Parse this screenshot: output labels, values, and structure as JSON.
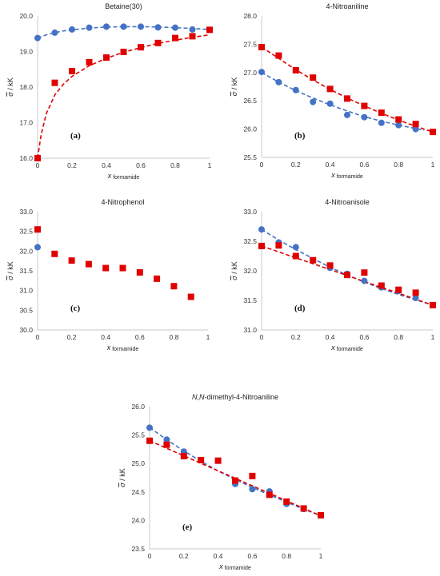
{
  "colors": {
    "blue": "#4472C4",
    "red": "#E00000",
    "axis": "#c8c8c8"
  },
  "chart_data": [
    {
      "type": "scatter",
      "title": "Betaine(30)",
      "panel_label": "(a)",
      "xlabel": "x",
      "xlabel_sub": "formamide",
      "ylabel_sym": "σ",
      "ylabel_unit": " / kK",
      "xlim": [
        0,
        1
      ],
      "ylim": [
        16.0,
        20.0
      ],
      "xticks": [
        "0",
        "0.2",
        "0.4",
        "0.6",
        "0.8",
        "1"
      ],
      "yticks": [
        "16.0",
        "17.0",
        "18.0",
        "19.0",
        "20.0"
      ],
      "series": [
        {
          "color": "blue",
          "marker": "circle",
          "x": [
            0,
            0.1,
            0.2,
            0.3,
            0.4,
            0.5,
            0.6,
            0.7,
            0.8,
            0.9
          ],
          "y": [
            19.38,
            19.53,
            19.62,
            19.67,
            19.7,
            19.7,
            19.7,
            19.68,
            19.67,
            19.62
          ],
          "fit_x": [
            0,
            0.05,
            0.1,
            0.15,
            0.2,
            0.3,
            0.4,
            0.5,
            0.6,
            0.7,
            0.8,
            0.9,
            1.0
          ],
          "fit_y": [
            19.38,
            19.47,
            19.53,
            19.58,
            19.61,
            19.66,
            19.69,
            19.7,
            19.7,
            19.69,
            19.67,
            19.65,
            19.62
          ]
        },
        {
          "color": "red",
          "marker": "square",
          "x": [
            0,
            0.1,
            0.2,
            0.3,
            0.4,
            0.5,
            0.6,
            0.7,
            0.8,
            0.9,
            1.0
          ],
          "y": [
            16.0,
            18.12,
            18.45,
            18.7,
            18.83,
            18.99,
            19.12,
            19.24,
            19.38,
            19.43,
            19.61
          ],
          "fit_x": [
            0,
            0.02,
            0.05,
            0.1,
            0.15,
            0.2,
            0.3,
            0.4,
            0.5,
            0.6,
            0.7,
            0.8,
            0.9,
            1.0
          ],
          "fit_y": [
            16.0,
            16.65,
            17.25,
            17.78,
            18.08,
            18.3,
            18.6,
            18.81,
            18.98,
            19.11,
            19.23,
            19.32,
            19.4,
            19.47
          ]
        }
      ]
    },
    {
      "type": "scatter",
      "title": "4-Nitroaniline",
      "panel_label": "(b)",
      "xlabel": "x",
      "xlabel_sub": "formamide",
      "ylabel_sym": "σ",
      "ylabel_unit": " / kK",
      "xlim": [
        0,
        1
      ],
      "ylim": [
        25.5,
        28.0
      ],
      "xticks": [
        "0",
        "0.2",
        "0.4",
        "0.6",
        "0.8",
        "1"
      ],
      "yticks": [
        "25.5",
        "26.0",
        "26.5",
        "27.0",
        "27.5",
        "28.0"
      ],
      "series": [
        {
          "color": "blue",
          "marker": "circle",
          "x": [
            0,
            0.1,
            0.2,
            0.3,
            0.4,
            0.5,
            0.6,
            0.7,
            0.8,
            0.9
          ],
          "y": [
            27.01,
            26.83,
            26.69,
            26.48,
            26.45,
            26.25,
            26.21,
            26.11,
            26.07,
            26.0
          ],
          "fit_x": [
            0,
            0.1,
            0.2,
            0.3,
            0.4,
            0.5,
            0.6,
            0.7,
            0.8,
            0.9,
            0.95
          ],
          "fit_y": [
            27.0,
            26.83,
            26.68,
            26.55,
            26.43,
            26.32,
            26.22,
            26.14,
            26.07,
            26.01,
            25.98
          ]
        },
        {
          "color": "red",
          "marker": "square",
          "x": [
            0,
            0.1,
            0.2,
            0.3,
            0.4,
            0.5,
            0.6,
            0.7,
            0.8,
            0.9,
            1.0
          ],
          "y": [
            27.45,
            27.3,
            27.04,
            26.91,
            26.71,
            26.54,
            26.41,
            26.29,
            26.17,
            26.09,
            25.95
          ],
          "fit_x": [
            0,
            0.1,
            0.2,
            0.3,
            0.4,
            0.5,
            0.6,
            0.7,
            0.8,
            0.9,
            1.0
          ],
          "fit_y": [
            27.45,
            27.25,
            27.05,
            26.87,
            26.7,
            26.55,
            26.41,
            26.28,
            26.16,
            26.05,
            25.95
          ]
        }
      ]
    },
    {
      "type": "scatter",
      "title": "4-Nitrophenol",
      "panel_label": "(c)",
      "xlabel": "x",
      "xlabel_sub": "formamide",
      "ylabel_sym": "σ",
      "ylabel_unit": " / kK",
      "xlim": [
        0,
        1
      ],
      "ylim": [
        30.0,
        33.0
      ],
      "xticks": [
        "0",
        "0.2",
        "0.4",
        "0.6",
        "0.8",
        "1"
      ],
      "yticks": [
        "30.0",
        "30.5",
        "31.0",
        "31.5",
        "32.0",
        "32.5",
        "33.0"
      ],
      "series": [
        {
          "color": "blue",
          "marker": "circle",
          "x": [
            0
          ],
          "y": [
            32.1
          ]
        },
        {
          "color": "red",
          "marker": "square",
          "x": [
            0,
            0.1,
            0.2,
            0.3,
            0.4,
            0.5,
            0.6,
            0.7,
            0.8,
            0.9
          ],
          "y": [
            32.55,
            31.93,
            31.76,
            31.67,
            31.57,
            31.57,
            31.46,
            31.3,
            31.11,
            30.84
          ]
        }
      ]
    },
    {
      "type": "scatter",
      "title": "4-Nitroanisole",
      "panel_label": "(d)",
      "xlabel": "x",
      "xlabel_sub": "formamide",
      "ylabel_sym": "σ",
      "ylabel_unit": " / kK",
      "xlim": [
        0,
        1
      ],
      "ylim": [
        31.0,
        33.0
      ],
      "xticks": [
        "0",
        "0.2",
        "0.4",
        "0.6",
        "0.8",
        "1"
      ],
      "yticks": [
        "31.0",
        "31.5",
        "32.0",
        "32.5",
        "33.0"
      ],
      "series": [
        {
          "color": "blue",
          "marker": "circle",
          "x": [
            0,
            0.1,
            0.2,
            0.4,
            0.5,
            0.6,
            0.7,
            0.8,
            0.9
          ],
          "y": [
            32.7,
            32.48,
            32.4,
            32.05,
            31.95,
            31.83,
            31.72,
            31.66,
            31.54
          ],
          "fit_x": [
            0,
            0.1,
            0.2,
            0.3,
            0.4,
            0.5,
            0.6,
            0.7,
            0.8,
            0.9,
            1.0
          ],
          "fit_y": [
            32.7,
            32.52,
            32.36,
            32.21,
            32.06,
            31.93,
            31.81,
            31.7,
            31.6,
            31.51,
            31.42
          ]
        },
        {
          "color": "red",
          "marker": "square",
          "x": [
            0,
            0.1,
            0.2,
            0.3,
            0.4,
            0.5,
            0.6,
            0.7,
            0.8,
            0.9,
            1.0
          ],
          "y": [
            32.42,
            32.43,
            32.25,
            32.18,
            32.09,
            31.93,
            31.97,
            31.75,
            31.68,
            31.63,
            31.42
          ],
          "fit_x": [
            0,
            1.0
          ],
          "fit_y": [
            32.42,
            31.42
          ]
        }
      ]
    },
    {
      "type": "scatter",
      "title_italic": "N,N",
      "title_rest": "-dimethyl-4-Nitroaniline",
      "panel_label": "(e)",
      "xlabel": "x",
      "xlabel_sub": "formamide",
      "ylabel_sym": "σ",
      "ylabel_unit": " / kK",
      "xlim": [
        0,
        1
      ],
      "ylim": [
        23.5,
        26.0
      ],
      "xticks": [
        "0",
        "0.2",
        "0.4",
        "0.6",
        "0.8",
        "1"
      ],
      "yticks": [
        "23.5",
        "24.0",
        "24.5",
        "25.0",
        "25.5",
        "26.0"
      ],
      "series": [
        {
          "color": "blue",
          "marker": "circle",
          "x": [
            0,
            0.1,
            0.2,
            0.5,
            0.6,
            0.7,
            0.8,
            0.9
          ],
          "y": [
            25.63,
            25.42,
            25.21,
            24.64,
            24.55,
            24.51,
            24.29,
            24.2
          ],
          "fit_x": [
            0,
            0.1,
            0.2,
            0.3,
            0.4,
            0.5,
            0.6,
            0.7,
            0.8,
            0.9,
            1.0
          ],
          "fit_y": [
            25.63,
            25.42,
            25.22,
            25.04,
            24.87,
            24.72,
            24.58,
            24.45,
            24.32,
            24.2,
            24.08
          ]
        },
        {
          "color": "red",
          "marker": "square",
          "x": [
            0,
            0.1,
            0.2,
            0.3,
            0.4,
            0.5,
            0.6,
            0.7,
            0.8,
            0.9,
            1.0
          ],
          "y": [
            25.4,
            25.33,
            25.13,
            25.06,
            25.05,
            24.7,
            24.78,
            24.45,
            24.33,
            24.21,
            24.09
          ],
          "fit_x": [
            0,
            1.0
          ],
          "fit_y": [
            25.4,
            24.08
          ]
        }
      ]
    }
  ]
}
